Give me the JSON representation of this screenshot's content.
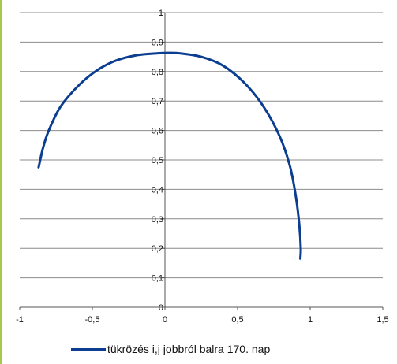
{
  "colors": {
    "series": "#0b3d91",
    "grid": "#8c8c8c",
    "axis": "#555555",
    "left_border": "#a7c94a"
  },
  "chart_data": {
    "type": "scatter",
    "title": "",
    "xlabel": "",
    "ylabel": "",
    "xlim": [
      -1,
      1.5
    ],
    "ylim": [
      0,
      1
    ],
    "x_ticks": [
      -1,
      -0.5,
      0,
      0.5,
      1,
      1.5
    ],
    "x_tick_labels": [
      "-1",
      "-0,5",
      "0",
      "0,5",
      "1",
      "1,5"
    ],
    "y_ticks": [
      0,
      0.1,
      0.2,
      0.3,
      0.4,
      0.5,
      0.6,
      0.7,
      0.8,
      0.9,
      1
    ],
    "y_tick_labels": [
      "0",
      "0,1",
      "0,2",
      "0,3",
      "0,4",
      "0,5",
      "0,6",
      "0,7",
      "0,8",
      "0,9",
      "1"
    ],
    "grid": "horizontal",
    "legend_position": "bottom",
    "series": [
      {
        "name": "tükrözés i,j jobbról balra 170. nap",
        "style": "smooth-line",
        "points": [
          [
            -0.87,
            0.475
          ],
          [
            -0.84,
            0.54
          ],
          [
            -0.8,
            0.6
          ],
          [
            -0.72,
            0.68
          ],
          [
            -0.6,
            0.75
          ],
          [
            -0.48,
            0.8
          ],
          [
            -0.35,
            0.835
          ],
          [
            -0.2,
            0.855
          ],
          [
            -0.05,
            0.862
          ],
          [
            0.0,
            0.863
          ],
          [
            0.1,
            0.862
          ],
          [
            0.25,
            0.85
          ],
          [
            0.4,
            0.82
          ],
          [
            0.55,
            0.76
          ],
          [
            0.68,
            0.68
          ],
          [
            0.79,
            0.58
          ],
          [
            0.86,
            0.48
          ],
          [
            0.9,
            0.38
          ],
          [
            0.925,
            0.28
          ],
          [
            0.935,
            0.2
          ],
          [
            0.932,
            0.165
          ]
        ]
      }
    ]
  }
}
